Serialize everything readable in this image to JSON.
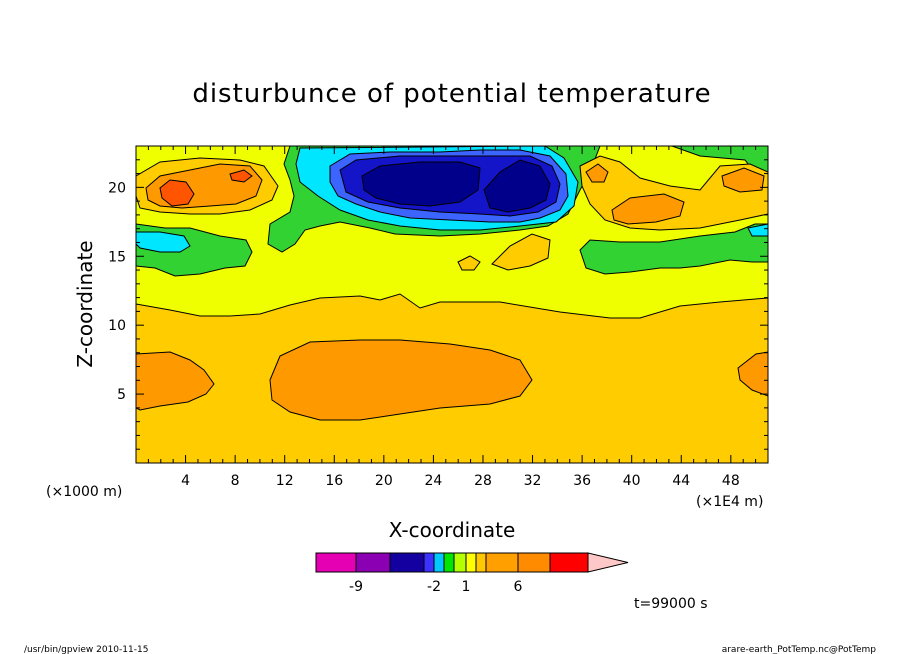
{
  "chart_data": {
    "type": "contour",
    "title": "disturbunce of potential temperature",
    "xlabel": "X-coordinate",
    "ylabel": "Z-coordinate",
    "x_ticks": [
      "4",
      "8",
      "12",
      "16",
      "20",
      "24",
      "28",
      "32",
      "36",
      "40",
      "44",
      "48"
    ],
    "y_ticks": [
      "5",
      "10",
      "15",
      "20"
    ],
    "y_unit": "(×1000 m)",
    "x_unit": "(×1E4 m)",
    "xlim": [
      0,
      51
    ],
    "ylim": [
      0,
      23
    ],
    "levels": [
      -9,
      -2,
      1,
      6
    ],
    "colorbar_labels": [
      "-9",
      "-2",
      "1",
      "6"
    ],
    "colorbar_colors": [
      "#e600b4",
      "#8c00b4",
      "#1400a0",
      "#3c32ff",
      "#00c8ff",
      "#00e600",
      "#b4ff00",
      "#ffff00",
      "#ffc800",
      "#ffa000",
      "#ff8c00",
      "#ff0000",
      "#ff7878",
      "#ffc8c8"
    ],
    "time_label": "t=99000 s",
    "colors": {
      "far_negative": "#00008b",
      "deep_negative": "#1414c8",
      "negative": "#3c64ff",
      "light_negative": "#00e6ff",
      "near_zero": "#32d232",
      "small_positive": "#f0ff00",
      "positive": "#ffcc00",
      "mid_positive": "#ff9900",
      "high_positive": "#ff5500"
    }
  },
  "footer": {
    "left": "/usr/bin/gpview   2010-11-15",
    "right": "arare-earth_PotTemp.nc@PotTemp"
  }
}
